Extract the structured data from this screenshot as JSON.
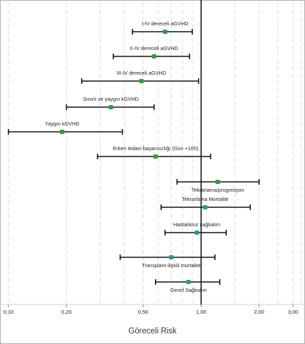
{
  "chart_data": {
    "type": "forest",
    "xlabel": "Göreceli Risk",
    "x_scale": "log",
    "xlim": [
      0.08,
      3.5
    ],
    "x_ticks": [
      {
        "value": 0.1,
        "label": "0,10"
      },
      {
        "value": 0.2,
        "label": "0,20"
      },
      {
        "value": 0.5,
        "label": "0,50"
      },
      {
        "value": 1.0,
        "label": "1,00"
      },
      {
        "value": 2.0,
        "label": "2,00"
      },
      {
        "value": 3.0,
        "label": "3,00"
      }
    ],
    "reference_line": 1.0,
    "grid": true,
    "rows": [
      {
        "label": "I-IV dereceli aGVHD",
        "estimate": 0.65,
        "lower": 0.44,
        "upper": 0.9,
        "label_position": "above",
        "marker_color": "#2e9e3e"
      },
      {
        "label": "II-IV dereceli aGVHD",
        "estimate": 0.57,
        "lower": 0.35,
        "upper": 0.87,
        "label_position": "above",
        "marker_color": "#2e9e3e"
      },
      {
        "label": "III-IV dereceli aGVHD",
        "estimate": 0.49,
        "lower": 0.24,
        "upper": 0.97,
        "label_position": "above",
        "marker_color": "#2e9e3e"
      },
      {
        "label": "Sınırlı ve yaygın kGVHD",
        "estimate": 0.34,
        "lower": 0.2,
        "upper": 0.57,
        "label_position": "above",
        "marker_color": "#2e9e3e"
      },
      {
        "label": "Yaygın kGVHD",
        "estimate": 0.19,
        "lower": 0.1,
        "upper": 0.39,
        "label_position": "above",
        "marker_color": "#2e9e3e"
      },
      {
        "label": "Erken tedavi başarısızlığı (Gün +100)",
        "estimate": 0.58,
        "lower": 0.29,
        "upper": 1.12,
        "label_position": "above",
        "marker_color": "#2e9e3e"
      },
      {
        "label": "Tekrarlama/progresyon",
        "estimate": 1.22,
        "lower": 0.75,
        "upper": 2.0,
        "label_position": "below",
        "marker_color": "#2e9e3e"
      },
      {
        "label": "Tekrarlama Mortalite",
        "estimate": 1.05,
        "lower": 0.62,
        "upper": 1.8,
        "label_position": "above",
        "marker_color": "#2a9a9a"
      },
      {
        "label": "Hastalıksız sağkalım",
        "estimate": 0.95,
        "lower": 0.65,
        "upper": 1.35,
        "label_position": "above",
        "marker_color": "#2a9a9a"
      },
      {
        "label": "Transplant ilişkili mortalite",
        "estimate": 0.7,
        "lower": 0.38,
        "upper": 1.18,
        "label_position": "below",
        "marker_color": "#2a9a9a"
      },
      {
        "label": "Genel Sağkalım",
        "estimate": 0.86,
        "lower": 0.58,
        "upper": 1.25,
        "label_position": "below",
        "marker_color": "#2a9a9a"
      }
    ]
  },
  "colors": {
    "line": "#111111",
    "grid": "#d2d2d2",
    "frame": "#b0b0b0",
    "text": "#222222"
  }
}
